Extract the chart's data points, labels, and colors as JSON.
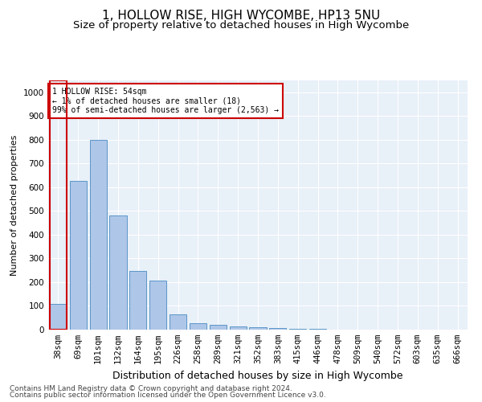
{
  "title1": "1, HOLLOW RISE, HIGH WYCOMBE, HP13 5NU",
  "title2": "Size of property relative to detached houses in High Wycombe",
  "xlabel": "Distribution of detached houses by size in High Wycombe",
  "ylabel": "Number of detached properties",
  "categories": [
    "38sqm",
    "69sqm",
    "101sqm",
    "132sqm",
    "164sqm",
    "195sqm",
    "226sqm",
    "258sqm",
    "289sqm",
    "321sqm",
    "352sqm",
    "383sqm",
    "415sqm",
    "446sqm",
    "478sqm",
    "509sqm",
    "540sqm",
    "572sqm",
    "603sqm",
    "635sqm",
    "666sqm"
  ],
  "values": [
    110,
    625,
    800,
    480,
    248,
    205,
    63,
    27,
    20,
    13,
    10,
    8,
    5,
    2,
    1,
    0,
    0,
    0,
    0,
    0,
    0
  ],
  "bar_color": "#aec6e8",
  "bar_edge_color": "#5b96c8",
  "highlight_bar_index": 0,
  "highlight_edge_color": "#cc0000",
  "annotation_text": "1 HOLLOW RISE: 54sqm\n← 1% of detached houses are smaller (18)\n99% of semi-detached houses are larger (2,563) →",
  "annotation_box_color": "#ffffff",
  "annotation_box_edge_color": "#cc0000",
  "ylim": [
    0,
    1050
  ],
  "yticks": [
    0,
    100,
    200,
    300,
    400,
    500,
    600,
    700,
    800,
    900,
    1000
  ],
  "footer1": "Contains HM Land Registry data © Crown copyright and database right 2024.",
  "footer2": "Contains public sector information licensed under the Open Government Licence v3.0.",
  "bg_color": "#e8f0f8",
  "title1_fontsize": 11,
  "title2_fontsize": 9.5,
  "xlabel_fontsize": 9,
  "ylabel_fontsize": 8,
  "tick_fontsize": 7.5,
  "footer_fontsize": 6.5
}
